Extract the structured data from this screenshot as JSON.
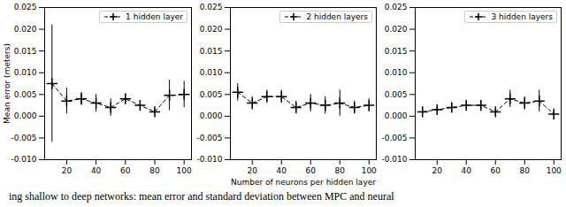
{
  "chart_data": [
    {
      "type": "line",
      "y_label": "Mean error (meters)",
      "x_label": null,
      "x": [
        10,
        20,
        30,
        40,
        50,
        60,
        70,
        80,
        90,
        100
      ],
      "xlim": [
        5,
        105
      ],
      "xticks": [
        20,
        40,
        60,
        80,
        100
      ],
      "ylim": [
        -0.01,
        0.025
      ],
      "yticks": [
        {
          "value": -0.01,
          "label": "-0.010"
        },
        {
          "value": -0.005,
          "label": "-0.005"
        },
        {
          "value": 0,
          "label": "0.000"
        },
        {
          "value": 0.005,
          "label": "0.005"
        },
        {
          "value": 0.01,
          "label": "0.010"
        },
        {
          "value": 0.015,
          "label": "0.015"
        },
        {
          "value": 0.02,
          "label": "0.020"
        },
        {
          "value": 0.025,
          "label": "0.025"
        }
      ],
      "legend": "upper right",
      "series": [
        {
          "name": "1 hidden layer",
          "color": "#000000",
          "line_style": "dashed",
          "marker": "plus",
          "values": [
            0.0075,
            0.0035,
            0.004,
            0.003,
            0.002,
            0.004,
            0.0025,
            0.001,
            0.0048,
            0.005
          ],
          "errors": [
            0.0135,
            0.003,
            0.0015,
            0.002,
            0.002,
            0.001,
            0.001,
            0.0005,
            0.0035,
            0.003
          ]
        }
      ]
    },
    {
      "type": "line",
      "y_label": null,
      "x_label": "Number of neurons per hidden layer",
      "x": [
        10,
        20,
        30,
        40,
        50,
        60,
        70,
        80,
        90,
        100
      ],
      "xlim": [
        5,
        105
      ],
      "xticks": [
        20,
        40,
        60,
        80,
        100
      ],
      "ylim": [
        -0.01,
        0.025
      ],
      "yticks": [
        {
          "value": -0.01,
          "label": "-0.010"
        },
        {
          "value": -0.005,
          "label": "-0.005"
        },
        {
          "value": 0,
          "label": "0.000"
        },
        {
          "value": 0.005,
          "label": "0.005"
        },
        {
          "value": 0.01,
          "label": "0.010"
        },
        {
          "value": 0.015,
          "label": "0.015"
        },
        {
          "value": 0.02,
          "label": "0.020"
        },
        {
          "value": 0.025,
          "label": "0.025"
        }
      ],
      "legend": "upper right",
      "series": [
        {
          "name": "2 hidden layers",
          "color": "#000000",
          "line_style": "dashed",
          "marker": "plus",
          "values": [
            0.0055,
            0.003,
            0.0045,
            0.0045,
            0.002,
            0.003,
            0.0025,
            0.003,
            0.002,
            0.0025
          ],
          "errors": [
            0.002,
            0.0015,
            0.0015,
            0.0015,
            0.0015,
            0.002,
            0.002,
            0.003,
            0.0015,
            0.0015
          ]
        }
      ]
    },
    {
      "type": "line",
      "y_label": null,
      "x_label": null,
      "x": [
        10,
        20,
        30,
        40,
        50,
        60,
        70,
        80,
        90,
        100
      ],
      "xlim": [
        5,
        105
      ],
      "xticks": [
        20,
        40,
        60,
        80,
        100
      ],
      "ylim": [
        -0.01,
        0.025
      ],
      "yticks": [
        {
          "value": -0.01,
          "label": "-0.010"
        },
        {
          "value": -0.005,
          "label": "-0.005"
        },
        {
          "value": 0,
          "label": "0.000"
        },
        {
          "value": 0.005,
          "label": "0.005"
        },
        {
          "value": 0.01,
          "label": "0.010"
        },
        {
          "value": 0.015,
          "label": "0.015"
        },
        {
          "value": 0.02,
          "label": "0.020"
        },
        {
          "value": 0.025,
          "label": "0.025"
        }
      ],
      "legend": "upper right",
      "series": [
        {
          "name": "3 hidden layers",
          "color": "#000000",
          "line_style": "dashed",
          "marker": "plus",
          "values": [
            0.001,
            0.0015,
            0.002,
            0.0025,
            0.0025,
            0.001,
            0.004,
            0.003,
            0.0035,
            0.0005
          ],
          "errors": [
            0.0005,
            0.0005,
            0.001,
            0.001,
            0.001,
            0.0005,
            0.002,
            0.0015,
            0.0025,
            0.0005
          ]
        }
      ]
    }
  ],
  "caption": "ing shallow to deep networks: mean error and standard deviation between MPC and neural"
}
